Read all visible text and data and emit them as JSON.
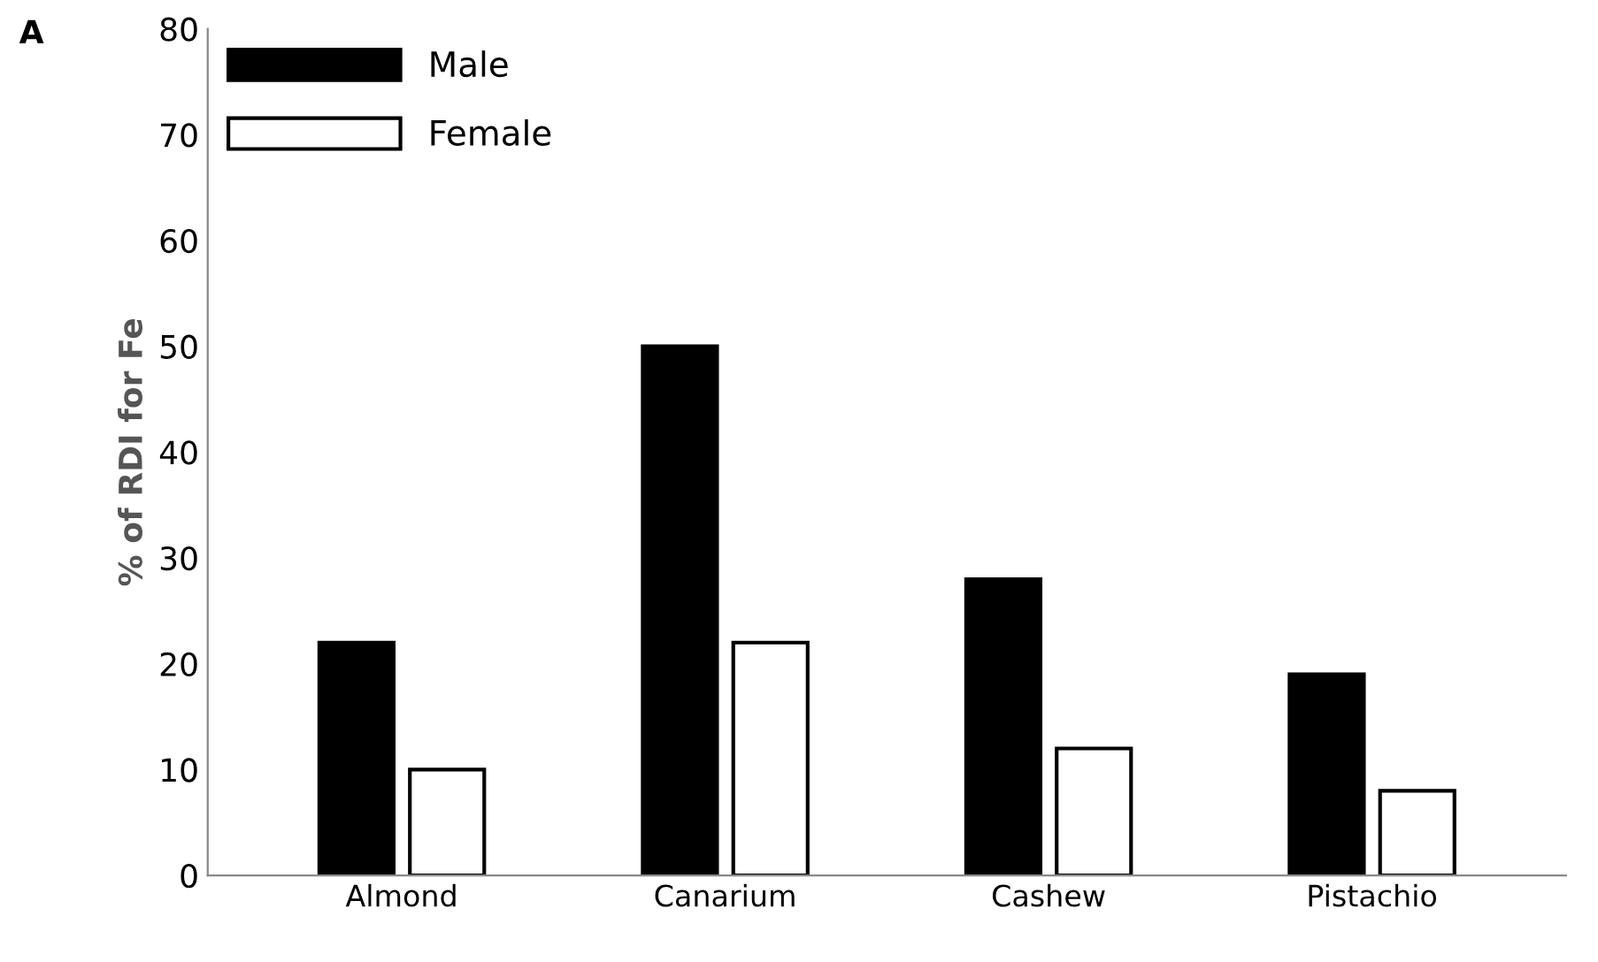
{
  "chart_data": {
    "type": "bar",
    "ylabel": "% of RDI for Fe",
    "annotations": [
      "A"
    ],
    "categories": [
      "Almond",
      "Canarium",
      "Cashew",
      "Pistachio"
    ],
    "series": [
      {
        "name": "Male",
        "color": "#000000",
        "values": [
          22,
          50,
          28,
          19
        ]
      },
      {
        "name": "Female",
        "color": "#ffffff",
        "values": [
          10,
          22,
          12,
          8
        ]
      }
    ],
    "ylim": [
      0,
      80
    ],
    "yticks": [
      0,
      10,
      20,
      30,
      40,
      50,
      60,
      70,
      80
    ],
    "grid": false,
    "legend": "top left"
  }
}
